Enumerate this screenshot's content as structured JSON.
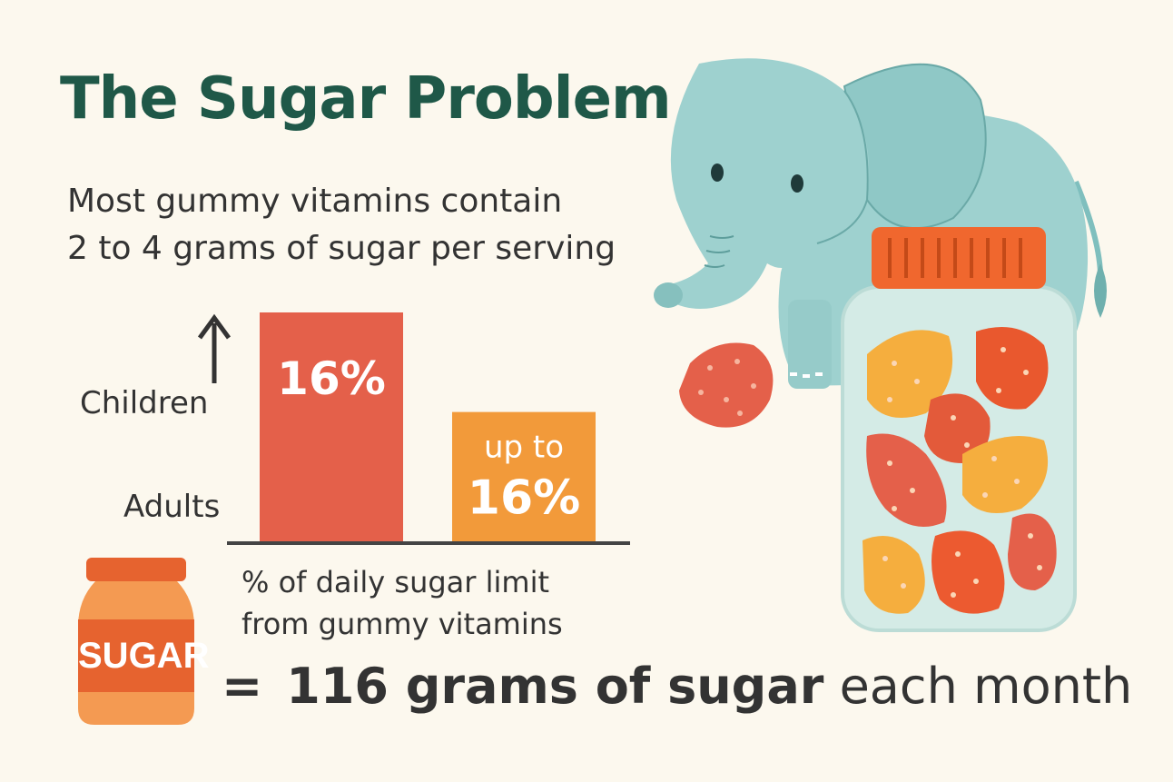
{
  "title": "The Sugar Problem",
  "subtitle": [
    "Most gummy vitamins contain",
    "2 to 4 grams of sugar per serving"
  ],
  "chart_data": {
    "type": "bar",
    "categories": [
      "Children",
      "Adults"
    ],
    "values": [
      16,
      16
    ],
    "value_labels": [
      "16%",
      "up to\n16%"
    ],
    "colors": [
      "#e4604a",
      "#f29a3a"
    ],
    "caption": [
      "% of daily sugar limit",
      "from gummy vitamins"
    ],
    "ylim": [
      0,
      16
    ]
  },
  "jar_label": "SUGAR",
  "bottom": {
    "equals": "=",
    "bold_text": "116 grams of sugar",
    "light_text": "each month"
  },
  "icons": [
    "up-arrow-icon",
    "sugar-jar-icon",
    "elephant-illustration",
    "gummy-jar-illustration",
    "gummy-candy-icon"
  ]
}
